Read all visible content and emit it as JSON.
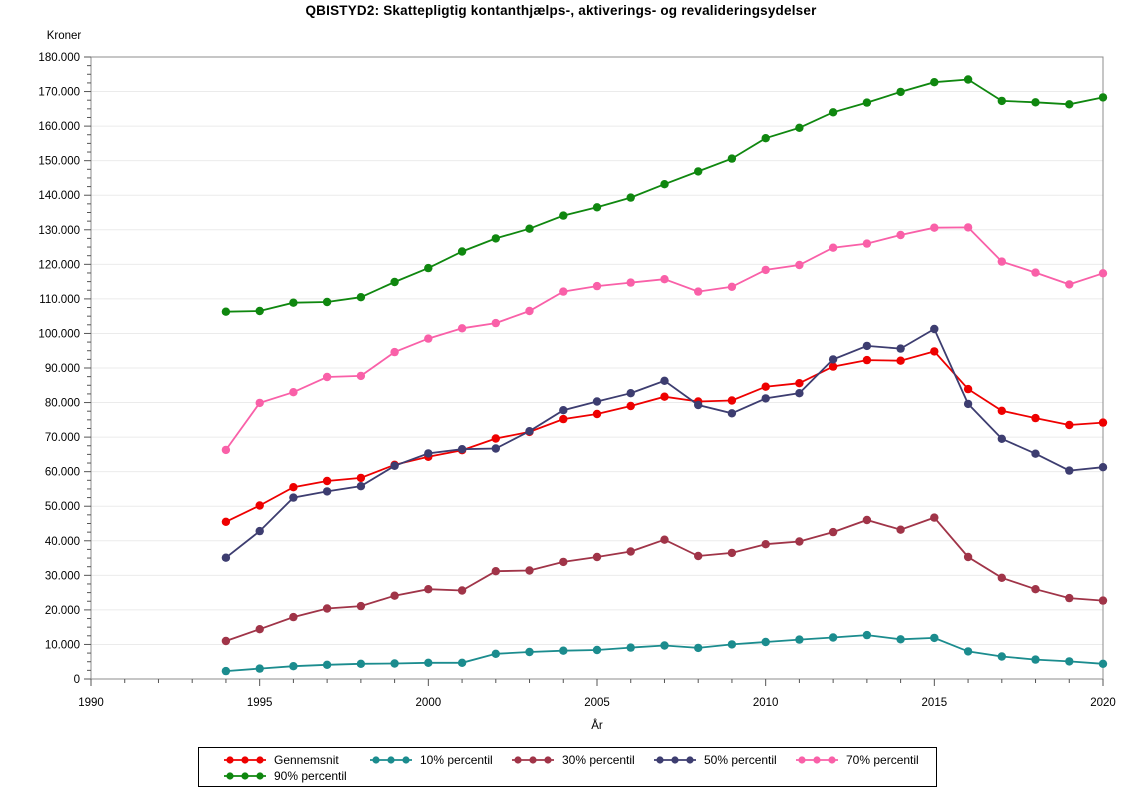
{
  "title": "QBISTYD2: Skattepligtig kontanthjælps-, aktiverings- og revalideringsydelser",
  "y_axis": {
    "label": "Kroner",
    "min": 0,
    "max": 180000,
    "minor_step": 2500,
    "tick_values": [
      0,
      10000,
      20000,
      30000,
      40000,
      50000,
      60000,
      70000,
      80000,
      90000,
      100000,
      110000,
      120000,
      130000,
      140000,
      150000,
      160000,
      170000,
      180000
    ],
    "tick_labels": [
      "0",
      "10.000",
      "20.000",
      "30.000",
      "40.000",
      "50.000",
      "60.000",
      "70.000",
      "80.000",
      "90.000",
      "100.000",
      "110.000",
      "120.000",
      "130.000",
      "140.000",
      "150.000",
      "160.000",
      "170.000",
      "180.000"
    ]
  },
  "x_axis": {
    "label": "År",
    "min": 1990,
    "max": 2020,
    "minor_step": 1,
    "tick_values": [
      1990,
      1995,
      2000,
      2005,
      2010,
      2015,
      2020
    ],
    "tick_labels": [
      "1990",
      "1995",
      "2000",
      "2005",
      "2010",
      "2015",
      "2020"
    ]
  },
  "legend": {
    "items": [
      {
        "label": "Gennemsnit",
        "color": "#ee0000"
      },
      {
        "label": "10% percentil",
        "color": "#1b8c8e"
      },
      {
        "label": "30% percentil",
        "color": "#a03448"
      },
      {
        "label": "50% percentil",
        "color": "#3d3d70"
      },
      {
        "label": "70% percentil",
        "color": "#f960a8"
      },
      {
        "label": "90% percentil",
        "color": "#0f870f"
      }
    ]
  },
  "chart_data": {
    "type": "line",
    "title": "QBISTYD2: Skattepligtig kontanthjælps-, aktiverings- og revalideringsydelser",
    "xlabel": "År",
    "ylabel": "Kroner",
    "xlim": [
      1990,
      2020
    ],
    "ylim": [
      0,
      180000
    ],
    "grid": "horizontal",
    "legend_position": "bottom",
    "marker": "circle",
    "x": [
      1994,
      1995,
      1996,
      1997,
      1998,
      1999,
      2000,
      2001,
      2002,
      2003,
      2004,
      2005,
      2006,
      2007,
      2008,
      2009,
      2010,
      2011,
      2012,
      2013,
      2014,
      2015,
      2016,
      2017,
      2018,
      2019,
      2020
    ],
    "series": [
      {
        "name": "Gennemsnit",
        "color": "#ee0000",
        "values": [
          45500,
          50200,
          55500,
          57300,
          58200,
          62000,
          64300,
          66200,
          69600,
          71500,
          75200,
          76700,
          79000,
          81700,
          80300,
          80600,
          84600,
          85600,
          90400,
          92300,
          92100,
          94800,
          83900,
          77600,
          75500,
          73500,
          74200
        ]
      },
      {
        "name": "10% percentil",
        "color": "#1b8c8e",
        "values": [
          2300,
          3000,
          3700,
          4100,
          4400,
          4500,
          4700,
          4700,
          7300,
          7800,
          8200,
          8400,
          9100,
          9700,
          9000,
          10000,
          10700,
          11400,
          12000,
          12700,
          11500,
          11900,
          8000,
          6500,
          5600,
          5100,
          4400
        ]
      },
      {
        "name": "30% percentil",
        "color": "#a03448",
        "values": [
          11000,
          14400,
          17900,
          20400,
          21100,
          24100,
          26000,
          25600,
          31200,
          31400,
          33900,
          35300,
          36900,
          40300,
          35600,
          36500,
          39000,
          39800,
          42500,
          46000,
          43200,
          46700,
          35300,
          29300,
          26000,
          23400,
          22700
        ]
      },
      {
        "name": "50% percentil",
        "color": "#3d3d70",
        "values": [
          35100,
          42800,
          52500,
          54300,
          55800,
          61700,
          65300,
          66500,
          66700,
          71700,
          77800,
          80300,
          82700,
          86300,
          79300,
          76900,
          81200,
          82700,
          92500,
          96400,
          95600,
          101300,
          79600,
          69500,
          65200,
          60300,
          61300
        ]
      },
      {
        "name": "70% percentil",
        "color": "#f960a8",
        "values": [
          66300,
          79900,
          83000,
          87400,
          87700,
          94600,
          98500,
          101500,
          103000,
          106500,
          112100,
          113700,
          114700,
          115700,
          112100,
          113500,
          118400,
          119800,
          124800,
          126000,
          128500,
          130600,
          130700,
          120800,
          117600,
          114200,
          117400
        ]
      },
      {
        "name": "90% percentil",
        "color": "#0f870f",
        "values": [
          106300,
          106500,
          108900,
          109100,
          110500,
          114900,
          118900,
          123700,
          127500,
          130300,
          134100,
          136500,
          139300,
          143200,
          146900,
          150600,
          156500,
          159500,
          164000,
          166800,
          169900,
          172700,
          173500,
          167300,
          166900,
          166300,
          168300
        ]
      }
    ]
  }
}
